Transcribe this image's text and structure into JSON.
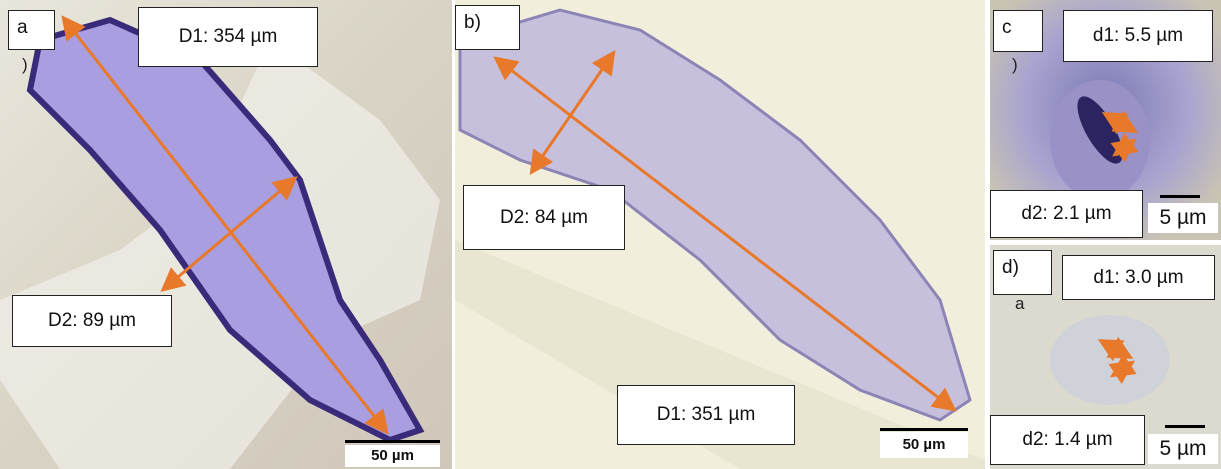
{
  "panels": [
    {
      "label": "a",
      "fragment": ")",
      "measurements": [
        "D1: 354 µm",
        "D2: 89 µm"
      ],
      "scale_bar": "50 µm"
    },
    {
      "label": "b)",
      "measurements": [
        "D2: 84 µm",
        "D1: 351 µm"
      ],
      "scale_bar": "50 µm"
    },
    {
      "label": "c",
      "fragment": ")",
      "measurements": [
        "d1: 5.5 µm",
        "d2: 2.1 µm"
      ],
      "scale_bar": "5 µm"
    },
    {
      "label": "d)",
      "fragment": "a",
      "measurements": [
        "d1: 3.0 µm",
        "d2: 1.4 µm"
      ],
      "scale_bar": "5 µm"
    }
  ]
}
